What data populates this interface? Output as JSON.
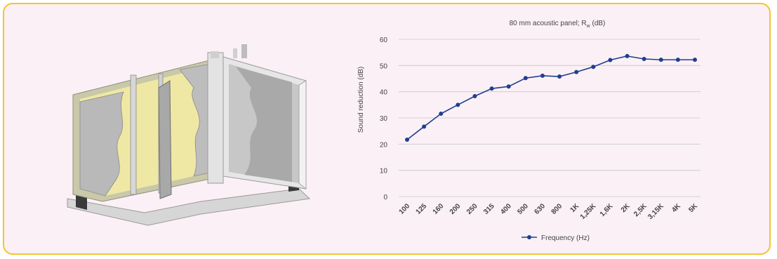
{
  "illustration": {
    "icon": "acoustic-wall-panel-cutaway-icon"
  },
  "chart_data": {
    "type": "line",
    "title_main": "80 mm acoustic panel; R",
    "title_sub": "w",
    "title_tail": " (dB)",
    "ylabel": "Sound reduction (dB)",
    "xlabel": "",
    "ylim": [
      0,
      60
    ],
    "yticks": [
      0,
      10,
      20,
      30,
      40,
      50,
      60
    ],
    "grid": true,
    "legend_position": "bottom-center",
    "categories": [
      "100",
      "125",
      "160",
      "200",
      "250",
      "315",
      "400",
      "500",
      "630",
      "800",
      "1K",
      "1,25K",
      "1,6K",
      "2K",
      "2,5K",
      "3,15K",
      "4K",
      "5K"
    ],
    "series": [
      {
        "name": "Frequency (Hz)",
        "color": "#1f3f8f",
        "values": [
          21.7,
          26.7,
          31.6,
          35.0,
          38.3,
          41.2,
          42.0,
          45.2,
          46.1,
          45.8,
          47.5,
          49.5,
          52.1,
          53.6,
          52.5,
          52.2,
          52.2,
          52.2
        ]
      }
    ]
  },
  "colors": {
    "frame_border": "#f4c430",
    "frame_background": "#fbf0f5",
    "series_line": "#1f3f8f",
    "panel_core": "#efe8a4",
    "panel_board": "#b9b9b9"
  }
}
